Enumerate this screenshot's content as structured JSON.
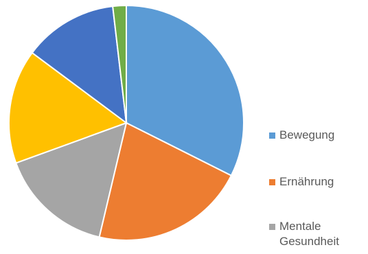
{
  "chart_data": {
    "type": "pie",
    "title": "",
    "slices": [
      {
        "label": "Bewegung",
        "value": 35,
        "color": "#5B9BD5"
      },
      {
        "label": "Ernährung",
        "value": 23,
        "color": "#ED7D31"
      },
      {
        "label": "Mentale Gesundheit",
        "value": 17,
        "color": "#A5A5A5"
      },
      {
        "label": "",
        "value": 17,
        "color": "#FFC000"
      },
      {
        "label": "",
        "value": 14,
        "color": "#4472C4"
      },
      {
        "label": "",
        "value": 2,
        "color": "#70AD47"
      }
    ],
    "legend": {
      "position": "right",
      "entries": [
        "Bewegung",
        "Ernährung",
        "Mentale Gesundheit"
      ]
    }
  }
}
